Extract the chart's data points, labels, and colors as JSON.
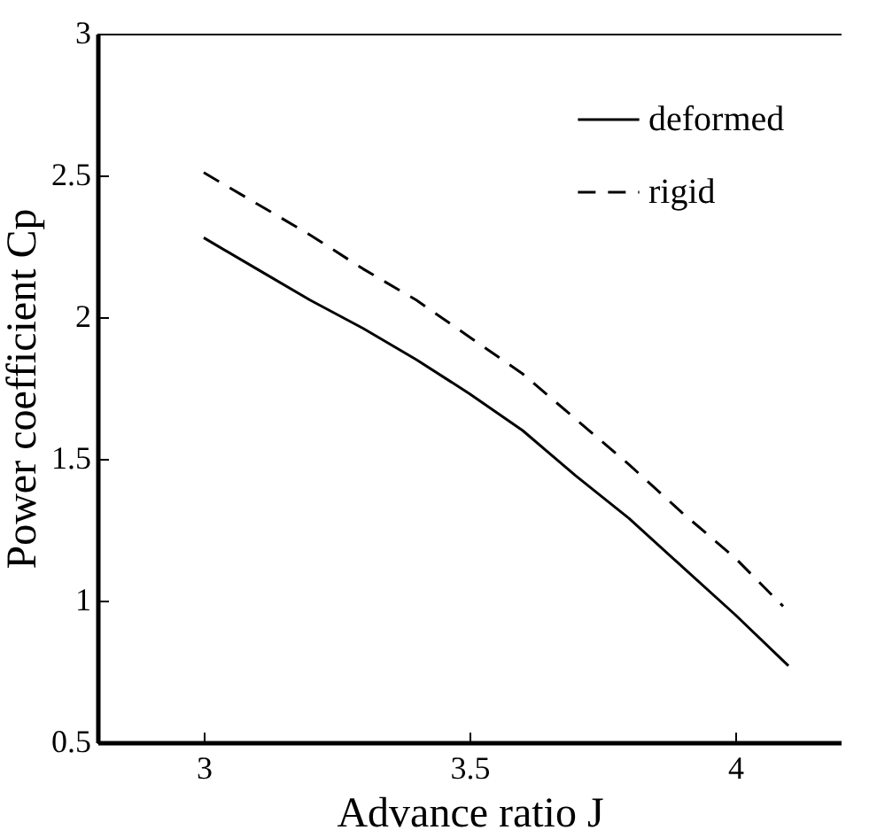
{
  "chart_data": {
    "type": "line",
    "xlabel": "Advance ratio J",
    "ylabel": "Power coefficient Cp",
    "xlim": [
      2.8,
      4.2
    ],
    "ylim": [
      0.5,
      3
    ],
    "xticks": [
      3,
      3.5,
      4
    ],
    "yticks": [
      0.5,
      1,
      1.5,
      2,
      2.5,
      3
    ],
    "legend": "top right",
    "grid": false,
    "series": [
      {
        "name": "deformed",
        "color": "#000000",
        "line_style": "solid",
        "x": [
          3.0,
          3.1,
          3.2,
          3.3,
          3.4,
          3.5,
          3.6,
          3.7,
          3.8,
          3.9,
          4.0,
          4.1
        ],
        "values": [
          2.28,
          2.17,
          2.06,
          1.96,
          1.85,
          1.73,
          1.6,
          1.44,
          1.29,
          1.12,
          0.95,
          0.77
        ]
      },
      {
        "name": "rigid",
        "color": "#000000",
        "line_style": "dashed",
        "x": [
          3.0,
          3.1,
          3.2,
          3.3,
          3.4,
          3.5,
          3.6,
          3.7,
          3.8,
          3.9,
          4.0,
          4.09
        ],
        "values": [
          2.51,
          2.4,
          2.29,
          2.17,
          2.06,
          1.93,
          1.8,
          1.64,
          1.48,
          1.31,
          1.15,
          0.98
        ]
      }
    ]
  }
}
